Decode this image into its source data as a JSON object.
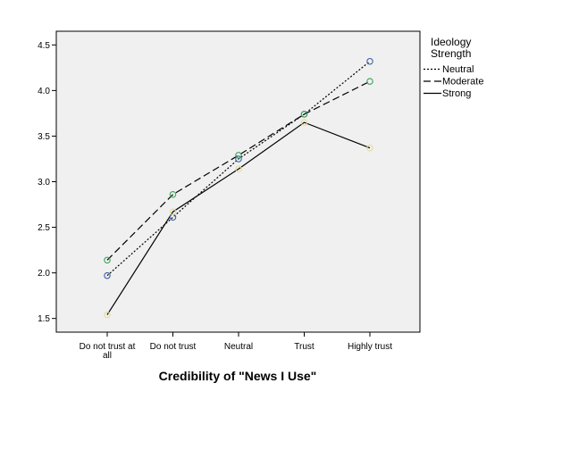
{
  "chart_data": {
    "type": "line",
    "title": "",
    "xlabel": "Credibility of \"News I Use\"",
    "ylabel": "",
    "categories": [
      "Do not trust at all",
      "Do not trust",
      "Neutral",
      "Trust",
      "Highly trust"
    ],
    "category_lines": [
      [
        "Do not trust at",
        "all"
      ],
      [
        "Do not trust"
      ],
      [
        "Neutral"
      ],
      [
        "Trust"
      ],
      [
        "Highly trust"
      ]
    ],
    "ylim": [
      1.35,
      4.65
    ],
    "yticks": [
      "1.5",
      "2.0",
      "2.5",
      "3.0",
      "3.5",
      "4.0",
      "4.5"
    ],
    "grid": false,
    "legend_title": [
      "Ideology",
      "Strength"
    ],
    "legend_position": "right",
    "series": [
      {
        "name": "Neutral",
        "style": "dotted",
        "marker_color": "#3d5fa8",
        "values": [
          1.97,
          2.61,
          3.25,
          3.74,
          4.32
        ]
      },
      {
        "name": "Moderate",
        "style": "dashed",
        "marker_color": "#3aa35a",
        "values": [
          2.14,
          2.86,
          3.29,
          3.74,
          4.1
        ]
      },
      {
        "name": "Strong",
        "style": "solid",
        "marker_color": "#e3dc9a",
        "values": [
          1.54,
          2.67,
          3.14,
          3.65,
          3.37
        ]
      }
    ],
    "plot_background": "#f0f0f0"
  }
}
